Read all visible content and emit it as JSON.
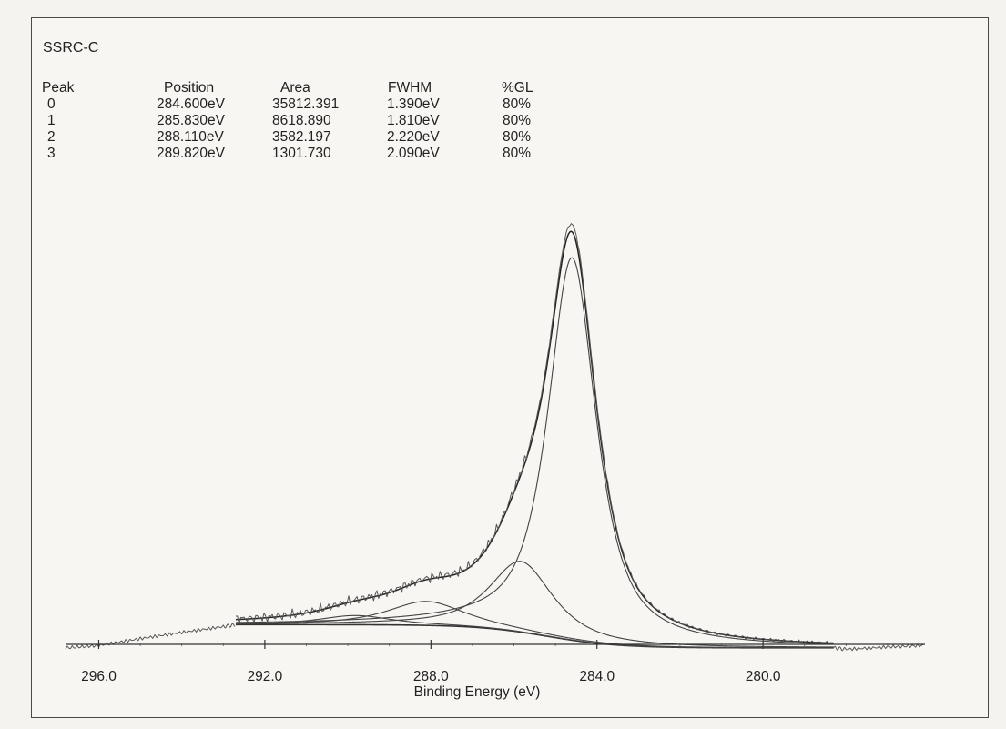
{
  "chart_data": {
    "type": "line",
    "title": "SSRC-C",
    "xlabel": "Binding Energy (eV)",
    "ylabel": "",
    "x_reversed": true,
    "xlim": [
      296.8,
      276.1
    ],
    "x_ticks": [
      "296.0",
      "292.0",
      "288.0",
      "284.0",
      "280.0"
    ],
    "x_tick_values": [
      296.0,
      292.0,
      288.0,
      284.0,
      280.0
    ],
    "grid": false,
    "table": {
      "headers": [
        "Peak",
        "Position",
        "Area",
        "FWHM",
        "%GL"
      ],
      "rows": [
        [
          "0",
          "284.600eV",
          "35812.391",
          "1.390eV",
          "80%"
        ],
        [
          "1",
          "285.830eV",
          "8618.890",
          "1.810eV",
          "80%"
        ],
        [
          "2",
          "288.110eV",
          "3582.197",
          "2.220eV",
          "80%"
        ],
        [
          "3",
          "289.820eV",
          "1301.730",
          "2.090eV",
          "80%"
        ]
      ]
    },
    "peaks": [
      {
        "position": 284.6,
        "area": 35812.391,
        "fwhm": 1.39,
        "gl": 80
      },
      {
        "position": 285.83,
        "area": 8618.89,
        "fwhm": 1.81,
        "gl": 80
      },
      {
        "position": 288.11,
        "area": 3582.197,
        "fwhm": 2.22,
        "gl": 80
      },
      {
        "position": 289.82,
        "area": 1301.73,
        "fwhm": 2.09,
        "gl": 80
      }
    ],
    "fit_range": [
      292.7,
      278.3
    ],
    "background": {
      "high_be": 5.2,
      "low_be": 0.4
    },
    "raw_tail_high_be": {
      "x": [
        296.8,
        296.0,
        295.0,
        294.0,
        293.0,
        292.7
      ],
      "y": [
        0.4,
        0.9,
        2.3,
        3.6,
        4.8,
        5.2
      ]
    },
    "raw_tail_low_be": {
      "x": [
        278.3,
        278.0,
        277.0,
        276.1
      ],
      "y": [
        0.4,
        0.1,
        0.6,
        0.9
      ]
    },
    "y_max_counts": 100
  }
}
